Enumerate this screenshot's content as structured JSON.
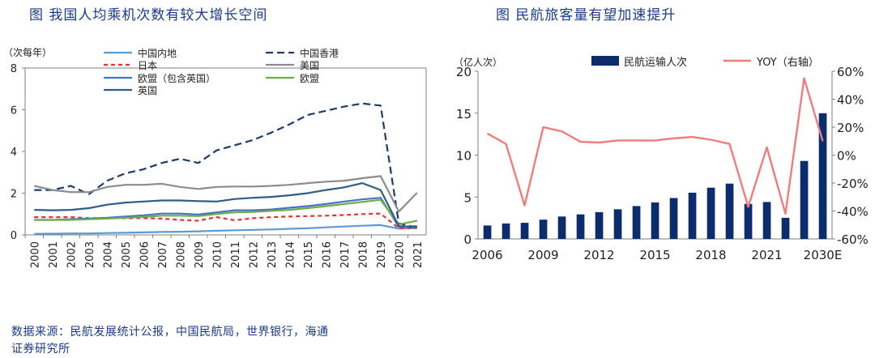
{
  "left_title": "图 我国人均乘机次数有较大增长空间",
  "right_title": "图 民航旅客量有望加速提升",
  "source_line1": "数据来源：民航发展统计公报，中国民航局，世界银行，海通",
  "source_line2": "证券研究所",
  "chart_data": [
    {
      "type": "line",
      "title": "图 我国人均乘机次数有较大增长空间",
      "ylabel": "（次每年）",
      "ylim": [
        0,
        8
      ],
      "yticks": [
        "0",
        "2",
        "4",
        "6",
        "8"
      ],
      "categories": [
        "2000",
        "2001",
        "2002",
        "2003",
        "2004",
        "2005",
        "2006",
        "2007",
        "2008",
        "2009",
        "2010",
        "2011",
        "2012",
        "2013",
        "2014",
        "2015",
        "2016",
        "2017",
        "2018",
        "2019",
        "2020",
        "2021"
      ],
      "legend": [
        "中国内地",
        "中国香港",
        "日本",
        "美国",
        "欧盟（包含英国）",
        "欧盟",
        "英国"
      ],
      "series": [
        {
          "name": "中国内地",
          "color": "#5b9bd5",
          "dash": "",
          "values": [
            0.05,
            0.06,
            0.07,
            0.07,
            0.09,
            0.1,
            0.12,
            0.14,
            0.15,
            0.17,
            0.2,
            0.22,
            0.24,
            0.26,
            0.29,
            0.32,
            0.36,
            0.4,
            0.44,
            0.47,
            0.3,
            0.32
          ]
        },
        {
          "name": "中国香港",
          "color": "#1f3a6e",
          "dash": "9,5",
          "values": [
            2.15,
            2.15,
            2.35,
            1.95,
            2.6,
            2.95,
            3.15,
            3.45,
            3.65,
            3.45,
            4.05,
            4.3,
            4.55,
            4.9,
            5.3,
            5.75,
            5.95,
            6.15,
            6.3,
            6.2,
            0.55,
            0.35
          ]
        },
        {
          "name": "日本",
          "color": "#e8312a",
          "dash": "5,4",
          "values": [
            0.85,
            0.85,
            0.85,
            0.8,
            0.8,
            0.8,
            0.8,
            0.78,
            0.72,
            0.68,
            0.85,
            0.7,
            0.8,
            0.85,
            0.88,
            0.9,
            0.92,
            0.95,
            1.0,
            1.02,
            0.32,
            0.35
          ]
        },
        {
          "name": "美国",
          "color": "#8c8c8c",
          "dash": "",
          "values": [
            2.35,
            2.15,
            2.05,
            2.05,
            2.3,
            2.4,
            2.4,
            2.45,
            2.3,
            2.2,
            2.3,
            2.32,
            2.32,
            2.35,
            2.4,
            2.48,
            2.55,
            2.6,
            2.72,
            2.82,
            1.12,
            2.02
          ]
        },
        {
          "name": "欧盟（包含英国）",
          "color": "#4472c4",
          "dash": "",
          "values": [
            0.72,
            0.72,
            0.75,
            0.78,
            0.82,
            0.88,
            0.94,
            1.02,
            1.02,
            0.98,
            1.08,
            1.18,
            1.18,
            1.22,
            1.3,
            1.38,
            1.48,
            1.6,
            1.7,
            1.78,
            0.38,
            0.42
          ]
        },
        {
          "name": "欧盟",
          "color": "#70ad47",
          "dash": "",
          "values": [
            0.72,
            0.72,
            0.72,
            0.75,
            0.78,
            0.82,
            0.86,
            0.92,
            0.92,
            0.9,
            1.0,
            1.08,
            1.1,
            1.15,
            1.2,
            1.28,
            1.38,
            1.48,
            1.58,
            1.68,
            0.5,
            0.68
          ]
        },
        {
          "name": "英国",
          "color": "#2f5d8a",
          "dash": "",
          "values": [
            1.2,
            1.18,
            1.2,
            1.28,
            1.45,
            1.55,
            1.6,
            1.65,
            1.65,
            1.62,
            1.6,
            1.72,
            1.78,
            1.82,
            1.9,
            2.0,
            2.15,
            2.28,
            2.48,
            2.15,
            0.42,
            0.38
          ]
        }
      ]
    },
    {
      "type": "bar",
      "title": "图 民航旅客量有望加速提升",
      "ylabel_left": "（亿人次）",
      "legend": [
        "民航运输人次",
        "YOY（右轴）"
      ],
      "ylim_left": [
        0,
        20
      ],
      "yticks_left": [
        "0",
        "5",
        "10",
        "15",
        "20"
      ],
      "ylim_right": [
        -60,
        60
      ],
      "yticks_right": [
        "-60%",
        "-40%",
        "-20%",
        "0%",
        "20%",
        "40%",
        "60%"
      ],
      "x_tick_labels": [
        "2006",
        "2009",
        "2012",
        "2015",
        "2018",
        "2021",
        "2030E"
      ],
      "categories": [
        "2006",
        "2007",
        "2008",
        "2009",
        "2010",
        "2011",
        "2012",
        "2013",
        "2014",
        "2015",
        "2016",
        "2017",
        "2018",
        "2019",
        "2020",
        "2021",
        "2022",
        "2023",
        "2030E"
      ],
      "bar_color": "#0b2d6e",
      "line_color": "#f27b7b",
      "series": [
        {
          "name": "民航运输人次",
          "type": "bar",
          "values": [
            1.6,
            1.85,
            1.92,
            2.3,
            2.68,
            2.93,
            3.2,
            3.54,
            3.92,
            4.36,
            4.88,
            5.52,
            6.12,
            6.6,
            4.18,
            4.41,
            2.52,
            9.3,
            15.0
          ]
        },
        {
          "name": "YOY（右轴）",
          "type": "line",
          "values": [
            15.5,
            8,
            -36,
            20,
            17,
            9.5,
            9,
            10.5,
            10.5,
            10.5,
            12,
            13,
            11,
            8,
            -37,
            5.5,
            -42,
            55,
            10
          ]
        }
      ]
    }
  ]
}
